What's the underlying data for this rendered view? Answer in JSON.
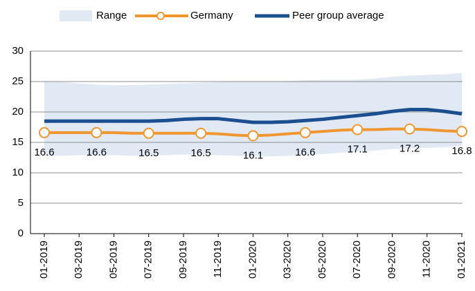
{
  "chart_data": {
    "type": "line",
    "categories": [
      "01-2019",
      null,
      "03-2019",
      null,
      "05-2019",
      null,
      "07-2019",
      null,
      "09-2019",
      null,
      "11-2019",
      null,
      "01-2020",
      null,
      "03-2020",
      null,
      "05-2020",
      null,
      "07-2020",
      null,
      "09-2020",
      null,
      "11-2020",
      null,
      "01-2021"
    ],
    "series": [
      {
        "name": "Range",
        "color": "#e1e9f4",
        "low": [
          12.8,
          12.8,
          12.9,
          12.9,
          12.9,
          12.8,
          12.8,
          12.9,
          13.0,
          13.0,
          12.9,
          12.8,
          12.7,
          12.7,
          12.8,
          12.9,
          13.1,
          13.3,
          13.5,
          13.7,
          13.9,
          14.0,
          14.1,
          14.2,
          14.4
        ],
        "high": [
          25.1,
          24.9,
          24.7,
          24.5,
          24.4,
          24.4,
          24.5,
          24.6,
          24.7,
          24.8,
          24.9,
          25.0,
          25.0,
          25.0,
          25.1,
          25.2,
          25.3,
          25.3,
          25.3,
          25.5,
          25.8,
          26.0,
          26.1,
          26.2,
          26.4
        ]
      },
      {
        "name": "Germany",
        "color": "#f0962e",
        "values": [
          16.6,
          16.6,
          16.6,
          16.6,
          16.6,
          16.5,
          16.5,
          16.5,
          16.5,
          16.5,
          16.4,
          16.2,
          16.1,
          16.2,
          16.4,
          16.6,
          16.8,
          17.0,
          17.1,
          17.1,
          17.2,
          17.2,
          17.1,
          16.9,
          16.8
        ],
        "value_labels": [
          "16.6",
          null,
          null,
          "16.6",
          null,
          null,
          "16.5",
          null,
          null,
          "16.5",
          null,
          null,
          "16.1",
          null,
          null,
          "16.6",
          null,
          null,
          "17.1",
          null,
          null,
          "17.2",
          null,
          null,
          "16.8"
        ]
      },
      {
        "name": "Peer group average",
        "color": "#1b4f8f",
        "values": [
          18.5,
          18.5,
          18.5,
          18.5,
          18.5,
          18.5,
          18.5,
          18.6,
          18.8,
          18.9,
          18.9,
          18.6,
          18.3,
          18.3,
          18.4,
          18.6,
          18.8,
          19.1,
          19.4,
          19.7,
          20.1,
          20.4,
          20.4,
          20.1,
          19.7
        ]
      }
    ],
    "ylim": [
      0,
      30
    ],
    "yticks": [
      0,
      5,
      10,
      15,
      20,
      25,
      30
    ],
    "grid": true
  }
}
